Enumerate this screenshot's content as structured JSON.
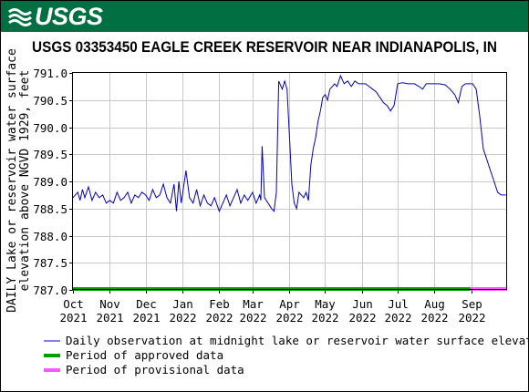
{
  "header": {
    "logo_text": "USGS",
    "brand_color": "#006f41"
  },
  "chart_data": {
    "type": "line",
    "title": "USGS 03353450 EAGLE CREEK RESERVOIR NEAR INDIANAPOLIS, IN",
    "ylabel_lines": [
      "DAILY Lake or reservoir water surface",
      "elevation above NGVD 1929, feet"
    ],
    "xlabel": "",
    "ylim": [
      787.0,
      791.0
    ],
    "yticks": [
      787.0,
      787.5,
      788.0,
      788.5,
      789.0,
      789.5,
      790.0,
      790.5,
      791.0
    ],
    "ytick_labels": [
      "787.0",
      "787.5",
      "788.0",
      "788.5",
      "789.0",
      "789.5",
      "790.0",
      "790.5",
      "791.0"
    ],
    "xlim": [
      "2021-10-01",
      "2022-09-30"
    ],
    "xticks": [
      {
        "date": "2021-10-01",
        "month": "Oct",
        "year": "2021"
      },
      {
        "date": "2021-11-01",
        "month": "Nov",
        "year": "2021"
      },
      {
        "date": "2021-12-01",
        "month": "Dec",
        "year": "2021"
      },
      {
        "date": "2022-01-01",
        "month": "Jan",
        "year": "2022"
      },
      {
        "date": "2022-02-01",
        "month": "Feb",
        "year": "2022"
      },
      {
        "date": "2022-03-01",
        "month": "Mar",
        "year": "2022"
      },
      {
        "date": "2022-04-01",
        "month": "Apr",
        "year": "2022"
      },
      {
        "date": "2022-05-01",
        "month": "May",
        "year": "2022"
      },
      {
        "date": "2022-06-01",
        "month": "Jun",
        "year": "2022"
      },
      {
        "date": "2022-07-01",
        "month": "Jul",
        "year": "2022"
      },
      {
        "date": "2022-08-01",
        "month": "Aug",
        "year": "2022"
      },
      {
        "date": "2022-09-01",
        "month": "Sep",
        "year": "2022"
      }
    ],
    "grid": true,
    "series": [
      {
        "name": "Daily observation at midnight lake or reservoir water surface elevation a",
        "color": "#0000cc",
        "x": [
          "2021-10-01",
          "2021-10-03",
          "2021-10-05",
          "2021-10-07",
          "2021-10-09",
          "2021-10-11",
          "2021-10-14",
          "2021-10-17",
          "2021-10-20",
          "2021-10-23",
          "2021-10-26",
          "2021-10-29",
          "2021-11-01",
          "2021-11-04",
          "2021-11-07",
          "2021-11-10",
          "2021-11-13",
          "2021-11-16",
          "2021-11-19",
          "2021-11-22",
          "2021-11-25",
          "2021-11-28",
          "2021-12-01",
          "2021-12-04",
          "2021-12-07",
          "2021-12-10",
          "2021-12-13",
          "2021-12-16",
          "2021-12-19",
          "2021-12-22",
          "2021-12-25",
          "2021-12-27",
          "2021-12-29",
          "2021-12-31",
          "2022-01-02",
          "2022-01-04",
          "2022-01-07",
          "2022-01-10",
          "2022-01-13",
          "2022-01-16",
          "2022-01-19",
          "2022-01-22",
          "2022-01-25",
          "2022-01-28",
          "2022-02-01",
          "2022-02-04",
          "2022-02-07",
          "2022-02-10",
          "2022-02-13",
          "2022-02-16",
          "2022-02-19",
          "2022-02-22",
          "2022-02-25",
          "2022-03-01",
          "2022-03-04",
          "2022-03-07",
          "2022-03-08",
          "2022-03-09",
          "2022-03-11",
          "2022-03-14",
          "2022-03-17",
          "2022-03-19",
          "2022-03-21",
          "2022-03-23",
          "2022-03-24",
          "2022-03-26",
          "2022-03-28",
          "2022-03-30",
          "2022-04-01",
          "2022-04-03",
          "2022-04-05",
          "2022-04-07",
          "2022-04-09",
          "2022-04-11",
          "2022-04-13",
          "2022-04-15",
          "2022-04-17",
          "2022-04-19",
          "2022-04-21",
          "2022-04-23",
          "2022-04-25",
          "2022-04-27",
          "2022-04-29",
          "2022-05-01",
          "2022-05-03",
          "2022-05-05",
          "2022-05-07",
          "2022-05-09",
          "2022-05-11",
          "2022-05-14",
          "2022-05-17",
          "2022-05-20",
          "2022-05-23",
          "2022-05-26",
          "2022-05-29",
          "2022-06-01",
          "2022-06-04",
          "2022-06-07",
          "2022-06-10",
          "2022-06-13",
          "2022-06-16",
          "2022-06-19",
          "2022-06-22",
          "2022-06-25",
          "2022-06-28",
          "2022-07-01",
          "2022-07-05",
          "2022-07-10",
          "2022-07-15",
          "2022-07-19",
          "2022-07-22",
          "2022-07-25",
          "2022-07-28",
          "2022-08-01",
          "2022-08-05",
          "2022-08-10",
          "2022-08-14",
          "2022-08-18",
          "2022-08-21",
          "2022-08-24",
          "2022-08-27",
          "2022-08-30",
          "2022-09-02",
          "2022-09-05",
          "2022-09-08",
          "2022-09-11",
          "2022-09-14",
          "2022-09-17",
          "2022-09-20",
          "2022-09-23",
          "2022-09-26",
          "2022-09-30"
        ],
        "y": [
          788.7,
          788.75,
          788.8,
          788.65,
          788.85,
          788.7,
          788.9,
          788.65,
          788.8,
          788.7,
          788.75,
          788.6,
          788.65,
          788.6,
          788.8,
          788.65,
          788.7,
          788.8,
          788.6,
          788.75,
          788.7,
          788.8,
          788.75,
          788.65,
          788.85,
          788.7,
          788.75,
          788.95,
          788.7,
          788.6,
          788.95,
          788.45,
          789.0,
          788.6,
          788.9,
          789.2,
          788.7,
          788.6,
          788.85,
          788.55,
          788.75,
          788.6,
          788.55,
          788.7,
          788.45,
          788.6,
          788.75,
          788.55,
          788.7,
          788.85,
          788.6,
          788.75,
          788.65,
          788.8,
          788.6,
          788.75,
          788.65,
          789.65,
          788.7,
          788.6,
          788.5,
          788.45,
          788.8,
          790.85,
          790.8,
          790.7,
          790.85,
          790.7,
          789.85,
          788.95,
          788.6,
          788.5,
          788.8,
          788.75,
          788.7,
          788.8,
          788.65,
          789.3,
          789.6,
          789.8,
          790.1,
          790.3,
          790.55,
          790.6,
          790.5,
          790.7,
          790.75,
          790.8,
          790.75,
          790.95,
          790.8,
          790.85,
          790.75,
          790.85,
          790.8,
          790.8,
          790.8,
          790.75,
          790.7,
          790.65,
          790.55,
          790.45,
          790.4,
          790.3,
          790.4,
          790.8,
          790.82,
          790.8,
          790.8,
          790.75,
          790.7,
          790.8,
          790.8,
          790.8,
          790.8,
          790.78,
          790.7,
          790.6,
          790.45,
          790.75,
          790.8,
          790.8,
          790.8,
          790.7,
          790.2,
          789.6,
          789.4,
          789.2,
          789.0,
          788.8,
          788.75,
          788.75
        ]
      }
    ],
    "periods": [
      {
        "name": "Period of approved data",
        "color": "#00a000",
        "start": "2021-10-01",
        "end": "2022-08-31"
      },
      {
        "name": "Period of provisional data",
        "color": "#ff55ff",
        "start": "2022-08-31",
        "end": "2022-09-30"
      }
    ]
  }
}
